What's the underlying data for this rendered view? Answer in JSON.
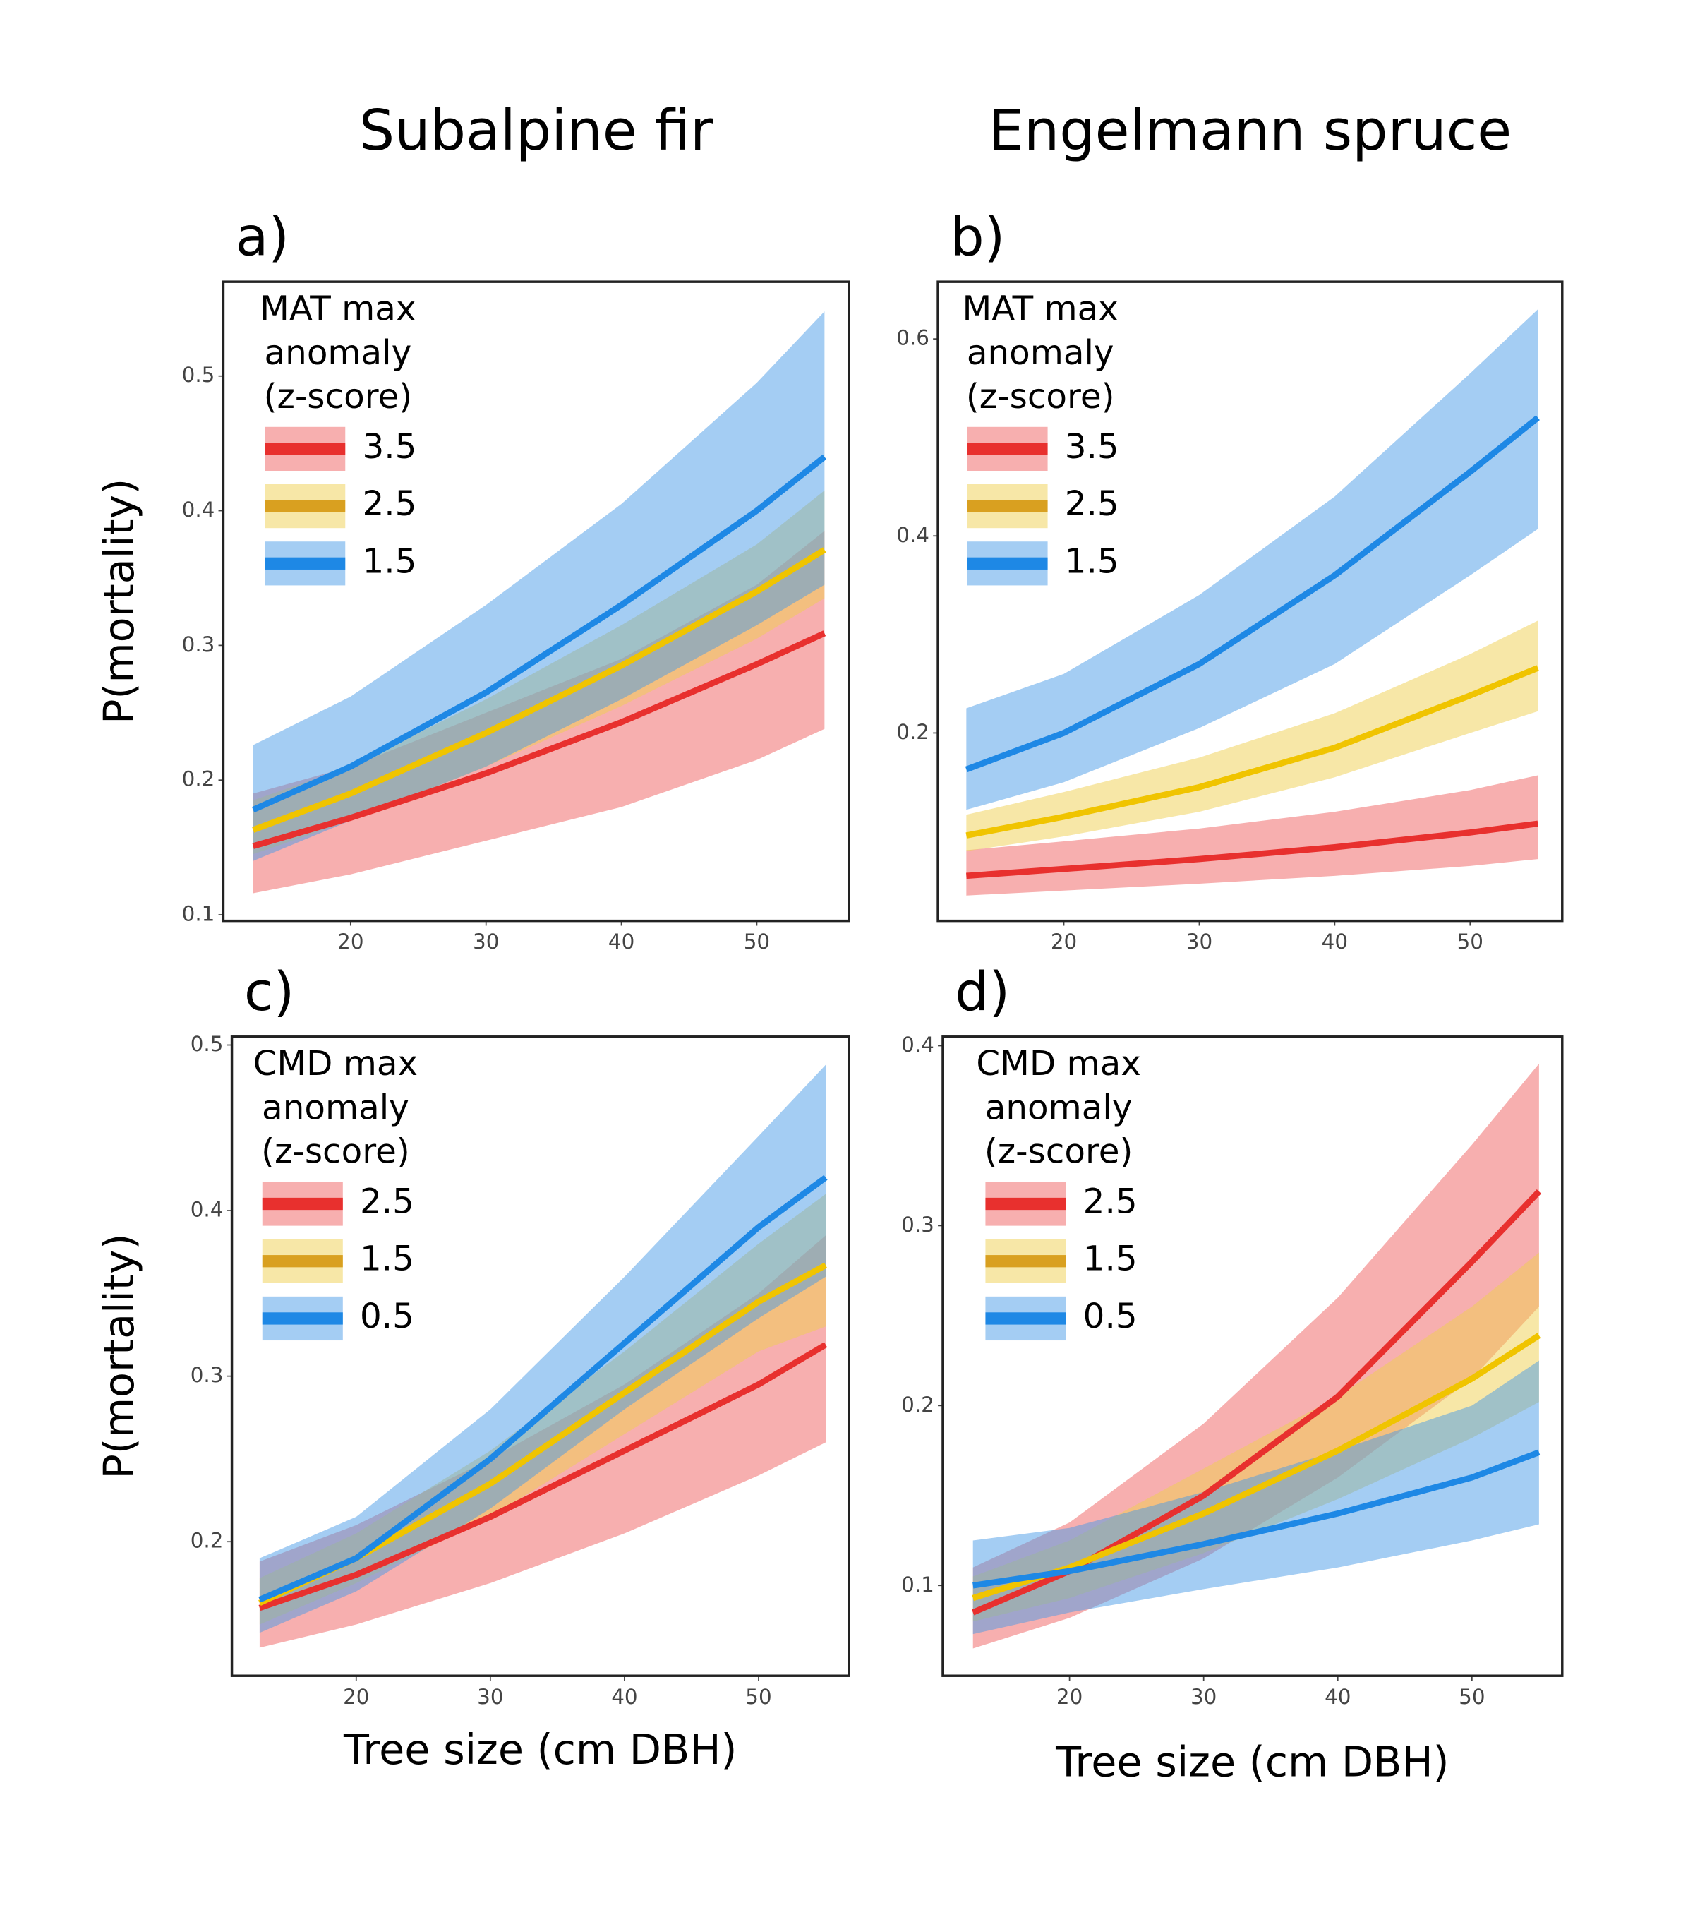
{
  "chart_data": [
    {
      "type": "line",
      "title": "Subalpine fir",
      "panel_label": "a)",
      "ylabel": "P(mortality)",
      "legend_title": [
        "MAT max",
        "anomaly",
        "(z-score)"
      ],
      "x": [
        12.8,
        20,
        30,
        40,
        50,
        55
      ],
      "xlim": [
        10.6,
        56.8
      ],
      "xticks": [
        20,
        30,
        40,
        50
      ],
      "ylim": [
        0.0955,
        0.57
      ],
      "yticks": [
        0.1,
        0.2,
        0.3,
        0.4,
        0.5
      ],
      "series": [
        {
          "name": "3.5",
          "color": "#e8302e",
          "values": [
            0.151,
            0.172,
            0.205,
            0.243,
            0.286,
            0.309
          ],
          "lower": [
            0.116,
            0.13,
            0.155,
            0.18,
            0.215,
            0.238
          ],
          "upper": [
            0.19,
            0.21,
            0.25,
            0.29,
            0.345,
            0.385
          ]
        },
        {
          "name": "2.5",
          "color": "#f0c400",
          "values": [
            0.163,
            0.19,
            0.235,
            0.285,
            0.34,
            0.371
          ],
          "lower": [
            0.145,
            0.17,
            0.21,
            0.255,
            0.305,
            0.335
          ],
          "upper": [
            0.185,
            0.21,
            0.26,
            0.315,
            0.375,
            0.415
          ]
        },
        {
          "name": "1.5",
          "color": "#1e88e5",
          "values": [
            0.178,
            0.21,
            0.265,
            0.33,
            0.4,
            0.44
          ],
          "lower": [
            0.14,
            0.17,
            0.21,
            0.26,
            0.315,
            0.345
          ],
          "upper": [
            0.226,
            0.262,
            0.33,
            0.405,
            0.495,
            0.548
          ]
        }
      ]
    },
    {
      "type": "line",
      "title": "Engelmann spruce",
      "panel_label": "b)",
      "legend_title": [
        "MAT max",
        "anomaly",
        "(z-score)"
      ],
      "x": [
        12.8,
        20,
        30,
        40,
        50,
        55
      ],
      "xlim": [
        10.7,
        56.8
      ],
      "xticks": [
        20,
        30,
        40,
        50
      ],
      "ylim": [
        0.0093,
        0.658
      ],
      "yticks": [
        0.2,
        0.4,
        0.6
      ],
      "series": [
        {
          "name": "3.5",
          "color": "#e8302e",
          "values": [
            0.055,
            0.062,
            0.072,
            0.084,
            0.099,
            0.108
          ],
          "lower": [
            0.035,
            0.04,
            0.047,
            0.055,
            0.065,
            0.072
          ],
          "upper": [
            0.081,
            0.09,
            0.103,
            0.12,
            0.142,
            0.157
          ]
        },
        {
          "name": "2.5",
          "color": "#f0c400",
          "values": [
            0.096,
            0.115,
            0.145,
            0.185,
            0.238,
            0.266
          ],
          "lower": [
            0.08,
            0.095,
            0.12,
            0.155,
            0.2,
            0.222
          ],
          "upper": [
            0.117,
            0.14,
            0.175,
            0.22,
            0.28,
            0.314
          ]
        },
        {
          "name": "1.5",
          "color": "#1e88e5",
          "values": [
            0.163,
            0.2,
            0.27,
            0.36,
            0.465,
            0.52
          ],
          "lower": [
            0.122,
            0.15,
            0.205,
            0.27,
            0.36,
            0.407
          ],
          "upper": [
            0.225,
            0.26,
            0.34,
            0.44,
            0.565,
            0.63
          ]
        }
      ]
    },
    {
      "type": "line",
      "panel_label": "c)",
      "ylabel": "P(mortality)",
      "xlabel": "Tree size (cm DBH)",
      "legend_title": [
        "CMD max",
        "anomaly",
        "(z-score)"
      ],
      "x": [
        12.8,
        20,
        30,
        40,
        50,
        55
      ],
      "xlim": [
        10.73,
        56.73
      ],
      "xticks": [
        20,
        30,
        40,
        50
      ],
      "ylim": [
        0.119,
        0.505
      ],
      "yticks": [
        0.2,
        0.3,
        0.4,
        0.5
      ],
      "series": [
        {
          "name": "2.5",
          "color": "#e8302e",
          "values": [
            0.16,
            0.18,
            0.215,
            0.255,
            0.295,
            0.319
          ],
          "lower": [
            0.136,
            0.15,
            0.175,
            0.205,
            0.24,
            0.26
          ],
          "upper": [
            0.188,
            0.21,
            0.25,
            0.295,
            0.35,
            0.385
          ]
        },
        {
          "name": "1.5",
          "color": "#f0c400",
          "values": [
            0.163,
            0.19,
            0.235,
            0.29,
            0.345,
            0.367
          ],
          "lower": [
            0.15,
            0.175,
            0.215,
            0.265,
            0.315,
            0.33
          ],
          "upper": [
            0.178,
            0.205,
            0.255,
            0.315,
            0.38,
            0.41
          ]
        },
        {
          "name": "0.5",
          "color": "#1e88e5",
          "values": [
            0.165,
            0.19,
            0.25,
            0.32,
            0.39,
            0.42
          ],
          "lower": [
            0.145,
            0.17,
            0.22,
            0.28,
            0.335,
            0.36
          ],
          "upper": [
            0.19,
            0.215,
            0.28,
            0.36,
            0.445,
            0.488
          ]
        }
      ]
    },
    {
      "type": "line",
      "panel_label": "d)",
      "xlabel": "Tree size (cm DBH)",
      "legend_title": [
        "CMD max",
        "anomaly",
        "(z-score)"
      ],
      "x": [
        12.8,
        20,
        30,
        40,
        50,
        55
      ],
      "xlim": [
        10.55,
        56.73
      ],
      "xticks": [
        20,
        30,
        40,
        50
      ],
      "ylim": [
        0.0498,
        0.405
      ],
      "yticks": [
        0.1,
        0.2,
        0.3,
        0.4
      ],
      "series": [
        {
          "name": "2.5",
          "color": "#e8302e",
          "values": [
            0.085,
            0.108,
            0.15,
            0.205,
            0.28,
            0.319
          ],
          "lower": [
            0.065,
            0.082,
            0.115,
            0.16,
            0.215,
            0.255
          ],
          "upper": [
            0.11,
            0.135,
            0.19,
            0.26,
            0.345,
            0.39
          ]
        },
        {
          "name": "1.5",
          "color": "#f0c400",
          "values": [
            0.093,
            0.11,
            0.14,
            0.175,
            0.215,
            0.239
          ],
          "lower": [
            0.08,
            0.093,
            0.118,
            0.148,
            0.182,
            0.202
          ],
          "upper": [
            0.105,
            0.125,
            0.165,
            0.205,
            0.255,
            0.285
          ]
        },
        {
          "name": "0.5",
          "color": "#1e88e5",
          "values": [
            0.1,
            0.108,
            0.123,
            0.14,
            0.16,
            0.174
          ],
          "lower": [
            0.073,
            0.085,
            0.098,
            0.11,
            0.125,
            0.134
          ],
          "upper": [
            0.125,
            0.132,
            0.152,
            0.175,
            0.2,
            0.225
          ]
        }
      ]
    }
  ]
}
